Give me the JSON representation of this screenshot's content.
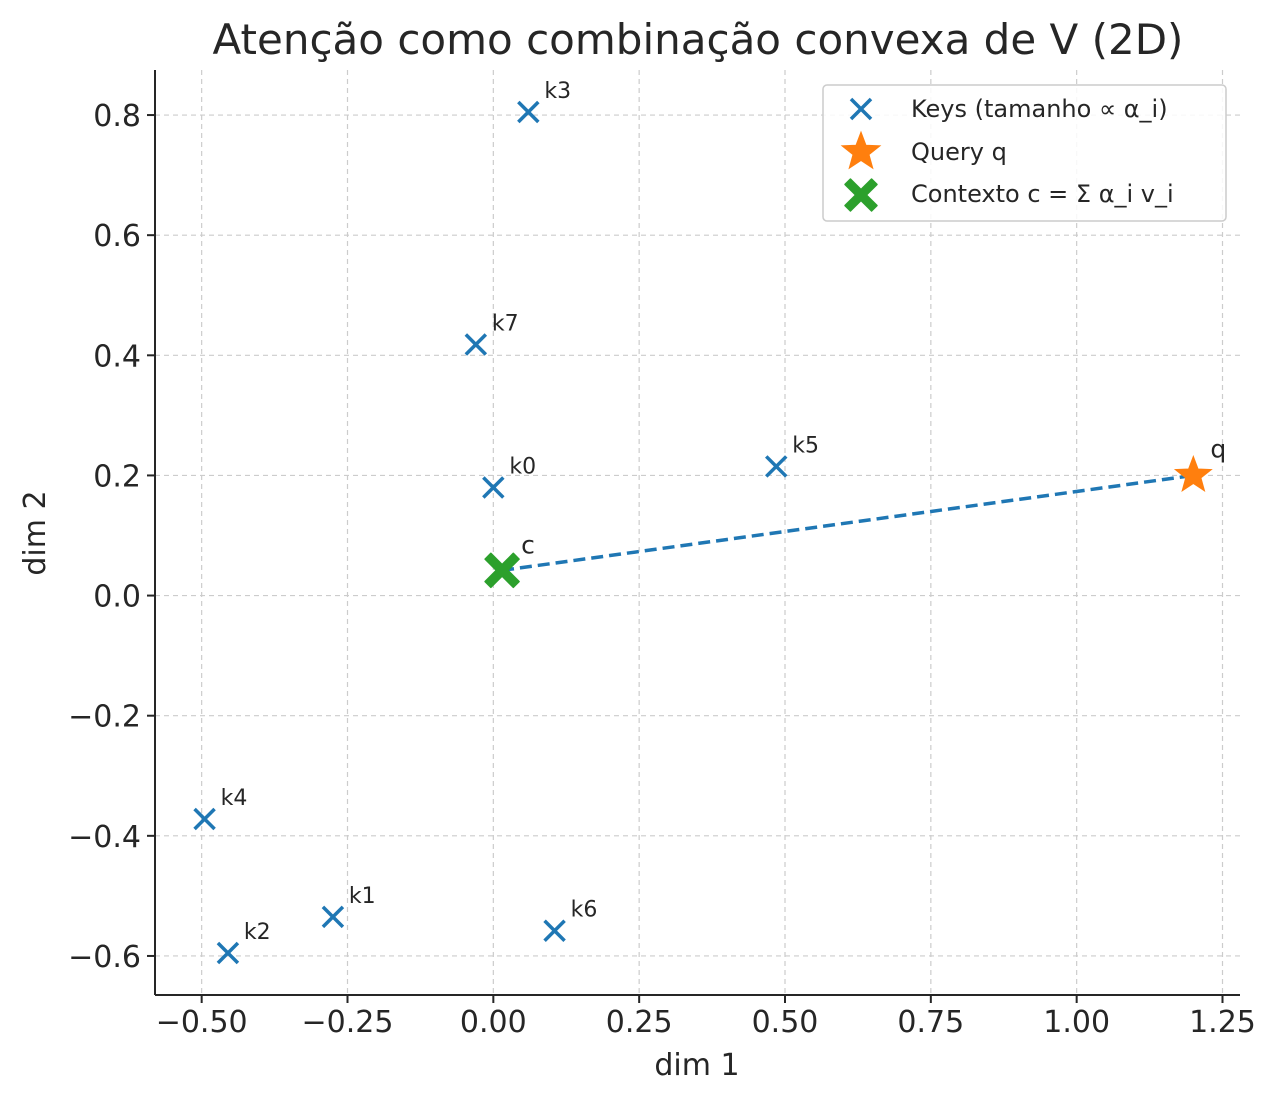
{
  "chart_data": {
    "type": "scatter",
    "title": "Atenção como combinação convexa de V (2D)",
    "xlabel": "dim 1",
    "ylabel": "dim 2",
    "xlim": [
      -0.58,
      1.28
    ],
    "ylim": [
      -0.665,
      0.875
    ],
    "grid": true,
    "legend_position": "top-right",
    "x_ticks": [
      -0.5,
      -0.25,
      0.0,
      0.25,
      0.5,
      0.75,
      1.0,
      1.25
    ],
    "x_tick_labels": [
      "−0.50",
      "−0.25",
      "0.00",
      "0.25",
      "0.50",
      "0.75",
      "1.00",
      "1.25"
    ],
    "y_ticks": [
      0.8,
      0.6,
      0.4,
      0.2,
      0.0,
      -0.2,
      -0.4,
      -0.6
    ],
    "y_tick_labels": [
      "0.8",
      "0.6",
      "0.4",
      "0.2",
      "0.0",
      "−0.2",
      "−0.4",
      "−0.6"
    ],
    "series": [
      {
        "name": "Keys (tamanho ∝ α_i)",
        "marker": "x",
        "color": "#1f77b4",
        "points": [
          {
            "label": "k0",
            "x": 0.0,
            "y": 0.18
          },
          {
            "label": "k1",
            "x": -0.275,
            "y": -0.535
          },
          {
            "label": "k2",
            "x": -0.455,
            "y": -0.595
          },
          {
            "label": "k3",
            "x": 0.06,
            "y": 0.805
          },
          {
            "label": "k4",
            "x": -0.495,
            "y": -0.372
          },
          {
            "label": "k5",
            "x": 0.485,
            "y": 0.215
          },
          {
            "label": "k6",
            "x": 0.105,
            "y": -0.558
          },
          {
            "label": "k7",
            "x": -0.03,
            "y": 0.418
          }
        ]
      },
      {
        "name": "Query q",
        "marker": "star",
        "color": "#ff7f0e",
        "points": [
          {
            "label": "q",
            "x": 1.2,
            "y": 0.2
          }
        ]
      },
      {
        "name": "Contexto c = Σ α_i v_i",
        "marker": "X",
        "color": "#2ca02c",
        "points": [
          {
            "label": "c",
            "x": 0.015,
            "y": 0.042
          }
        ]
      }
    ],
    "line": {
      "from": [
        0.015,
        0.042
      ],
      "to": [
        1.2,
        0.2
      ],
      "style": "dashed",
      "color": "#1f77b4"
    }
  }
}
